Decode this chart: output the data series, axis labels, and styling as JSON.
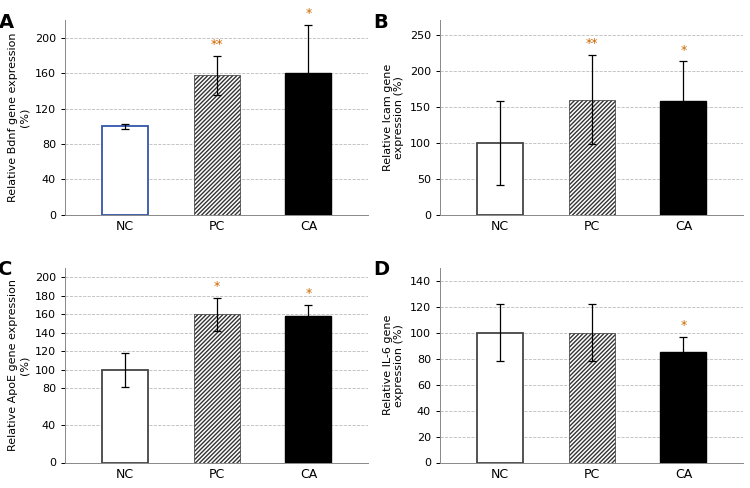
{
  "panels": [
    {
      "label": "A",
      "ylabel": "Relative Bdnf gene expression\n(%)",
      "ylim": [
        0,
        220
      ],
      "yticks": [
        0,
        40,
        80,
        120,
        160,
        200
      ],
      "categories": [
        "NC",
        "PC",
        "CA"
      ],
      "values": [
        100,
        158,
        160
      ],
      "errors": [
        3,
        22,
        55
      ],
      "significance": [
        "",
        "**",
        "*"
      ],
      "bar_styles": [
        "white",
        "hatch",
        "black"
      ],
      "bar_edgecolors": [
        "#3355aa",
        "#444444",
        "#000000"
      ]
    },
    {
      "label": "B",
      "ylabel": "Relative Icam gene\nexpression (%)",
      "ylim": [
        0,
        270
      ],
      "yticks": [
        0,
        50,
        100,
        150,
        200,
        250
      ],
      "categories": [
        "NC",
        "PC",
        "CA"
      ],
      "values": [
        100,
        160,
        158
      ],
      "errors": [
        58,
        62,
        55
      ],
      "significance": [
        "",
        "**",
        "*"
      ],
      "bar_styles": [
        "white",
        "hatch",
        "black"
      ],
      "bar_edgecolors": [
        "#444444",
        "#444444",
        "#000000"
      ]
    },
    {
      "label": "C",
      "ylabel": "Relative ApoE gene expression\n(%)",
      "ylim": [
        0,
        210
      ],
      "yticks": [
        0,
        40,
        80,
        100,
        120,
        140,
        160,
        180,
        200
      ],
      "categories": [
        "NC",
        "PC",
        "CA"
      ],
      "values": [
        100,
        160,
        158
      ],
      "errors": [
        18,
        18,
        12
      ],
      "significance": [
        "",
        "*",
        "*"
      ],
      "bar_styles": [
        "white",
        "hatch",
        "black"
      ],
      "bar_edgecolors": [
        "#444444",
        "#444444",
        "#000000"
      ]
    },
    {
      "label": "D",
      "ylabel": "Relative IL-6 gene\nexpression (%)",
      "ylim": [
        0,
        150
      ],
      "yticks": [
        0,
        20,
        40,
        60,
        80,
        100,
        120,
        140
      ],
      "categories": [
        "NC",
        "PC",
        "CA"
      ],
      "values": [
        100,
        100,
        85
      ],
      "errors": [
        22,
        22,
        12
      ],
      "significance": [
        "",
        "",
        "*"
      ],
      "bar_styles": [
        "white",
        "hatch",
        "black"
      ],
      "bar_edgecolors": [
        "#444444",
        "#444444",
        "#000000"
      ]
    }
  ],
  "hatch_pattern": "////////",
  "sig_color": "#cc6600",
  "sig_fontsize": 9,
  "label_fontsize": 14,
  "tick_fontsize": 8,
  "axis_label_fontsize": 8,
  "bar_width": 0.5,
  "grid_color": "#bbbbbb",
  "grid_linewidth": 0.6,
  "grid_linestyle": "--",
  "background_color": "#ffffff"
}
